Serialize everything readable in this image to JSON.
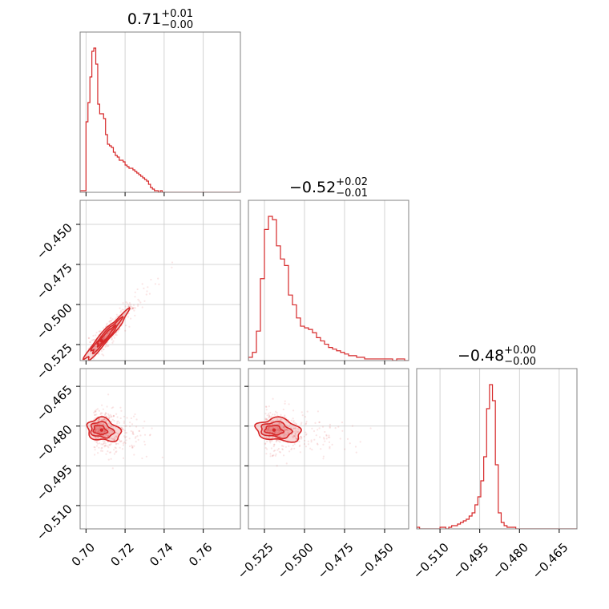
{
  "chart_data": {
    "type": "corner",
    "color": "#d62728",
    "titles": [
      {
        "main": "0.71",
        "sup": "+0.01",
        "sub": "−0.00"
      },
      {
        "main": "−0.52",
        "sup": "+0.02",
        "sub": "−0.01"
      },
      {
        "main": "−0.48",
        "sup": "+0.00",
        "sub": "−0.00"
      }
    ],
    "params": [
      {
        "range": [
          0.697,
          0.779
        ],
        "ticks": [
          0.7,
          0.72,
          0.74,
          0.76
        ],
        "tick_labels": [
          "0.70",
          "0.72",
          "0.74",
          "0.76"
        ]
      },
      {
        "range": [
          -0.535,
          -0.435
        ],
        "ticks": [
          -0.525,
          -0.5,
          -0.475,
          -0.45
        ],
        "tick_labels": [
          "−0.525",
          "−0.500",
          "−0.475",
          "−0.450"
        ]
      },
      {
        "range": [
          -0.5188,
          -0.4583
        ],
        "ticks": [
          -0.465,
          -0.48,
          -0.495,
          -0.51
        ],
        "tick_labels": [
          "−0.465",
          "−0.480",
          "−0.495",
          "−0.510"
        ],
        "x_tick_labels": [
          "−0.510",
          "−0.495",
          "−0.480",
          "−0.465"
        ],
        "x_ticks": [
          -0.51,
          -0.495,
          -0.48,
          -0.465
        ]
      }
    ],
    "histograms": [
      {
        "param": 0,
        "edges_start": 0.697,
        "bin_width": 0.001,
        "counts": [
          1,
          1,
          1,
          44,
          56,
          72,
          88,
          90,
          80,
          55,
          49,
          49,
          46,
          36,
          30,
          29,
          28,
          25,
          23,
          22,
          20,
          20,
          19,
          17,
          16,
          15,
          15,
          14,
          13,
          12,
          11,
          10,
          9,
          8,
          7,
          5,
          3,
          2,
          1,
          1,
          0,
          1,
          0,
          0,
          0,
          0,
          0,
          0,
          0,
          0,
          0,
          0,
          0,
          0,
          0,
          0,
          0,
          0,
          0,
          0,
          0,
          0,
          0,
          0,
          0,
          0,
          0,
          0,
          0,
          0,
          0,
          0,
          0,
          0,
          0,
          0,
          0,
          0,
          0,
          0,
          0,
          0
        ]
      },
      {
        "param": 1,
        "edges_start": -0.535,
        "bin_width": 0.0025,
        "counts": [
          2,
          5,
          18,
          50,
          80,
          88,
          86,
          70,
          62,
          58,
          40,
          34,
          26,
          21,
          20,
          19,
          17,
          14,
          12,
          10,
          8,
          7,
          6,
          5,
          4,
          3,
          3,
          2,
          2,
          1,
          1,
          1,
          1,
          1,
          1,
          1,
          0,
          1,
          1,
          0
        ]
      },
      {
        "param": 2,
        "edges_start": -0.5188,
        "bin_width": 0.0011,
        "counts": [
          1,
          0,
          0,
          0,
          0,
          0,
          0,
          0,
          1,
          1,
          0,
          1,
          2,
          2,
          3,
          4,
          5,
          6,
          8,
          10,
          15,
          20,
          30,
          45,
          75,
          90,
          80,
          40,
          10,
          4,
          2,
          1,
          1,
          1,
          0,
          0,
          0,
          0,
          0,
          0,
          0,
          0,
          0,
          0,
          0,
          0,
          0,
          0,
          0,
          0,
          0,
          0,
          0,
          0,
          0
        ]
      }
    ],
    "pairs": [
      {
        "x_param": 0,
        "y_param": 1,
        "density": "narrow-band",
        "mode": [
          0.704,
          -0.528
        ],
        "slope": 1.35
      },
      {
        "x_param": 0,
        "y_param": 2,
        "density": "blob",
        "mode": [
          0.706,
          -0.4815
        ]
      },
      {
        "x_param": 1,
        "y_param": 2,
        "density": "blob",
        "mode": [
          -0.521,
          -0.4815
        ]
      }
    ]
  }
}
